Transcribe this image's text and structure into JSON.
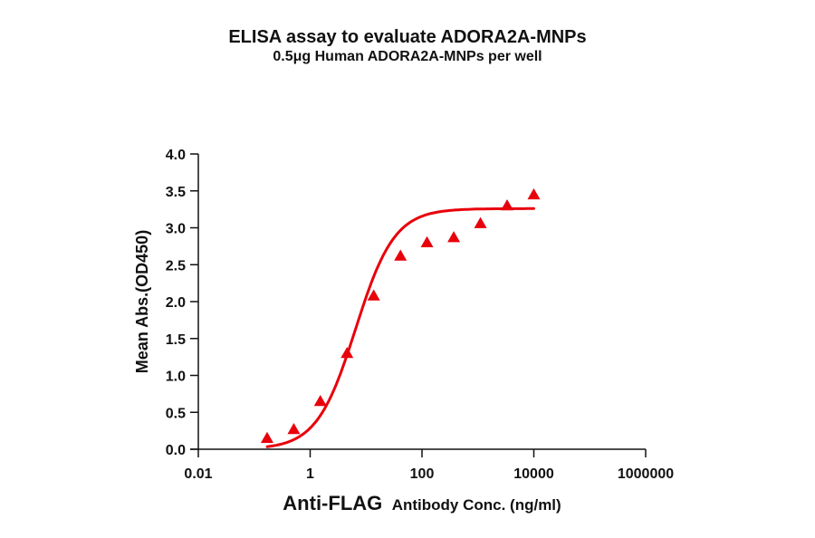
{
  "chart_data": {
    "type": "scatter",
    "title": "ELISA assay to evaluate ADORA2A-MNPs",
    "subtitle": "0.5μg Human ADORA2A-MNPs per well",
    "xlabel": "Anti-FLAG Antibody Conc. (ng/ml)",
    "xlabel_parts": [
      "Anti-FLAG",
      "Antibody Conc. (ng/ml)"
    ],
    "ylabel": "Mean Abs.(OD450)",
    "xscale": "log",
    "xlim": [
      0.01,
      1000000
    ],
    "ylim": [
      0.0,
      4.0
    ],
    "x_ticks": [
      "0.01",
      "1",
      "100",
      "10000",
      "1000000"
    ],
    "y_ticks": [
      "0.0",
      "0.5",
      "1.0",
      "1.5",
      "2.0",
      "2.5",
      "3.0",
      "3.5",
      "4.0"
    ],
    "grid": false,
    "legend": null,
    "series": [
      {
        "name": "Anti-FLAG Antibody",
        "marker": "triangle",
        "color": "#e8000b",
        "x": [
          0.17,
          0.51,
          1.52,
          4.57,
          13.7,
          41.2,
          123,
          370,
          1111,
          3333,
          10000
        ],
        "y": [
          0.15,
          0.27,
          0.65,
          1.3,
          2.08,
          2.62,
          2.8,
          2.87,
          3.06,
          3.3,
          3.45
        ],
        "fit": "4PL sigmoidal curve"
      }
    ]
  },
  "colors": {
    "series": "#e8000b",
    "axis": "#111111"
  }
}
